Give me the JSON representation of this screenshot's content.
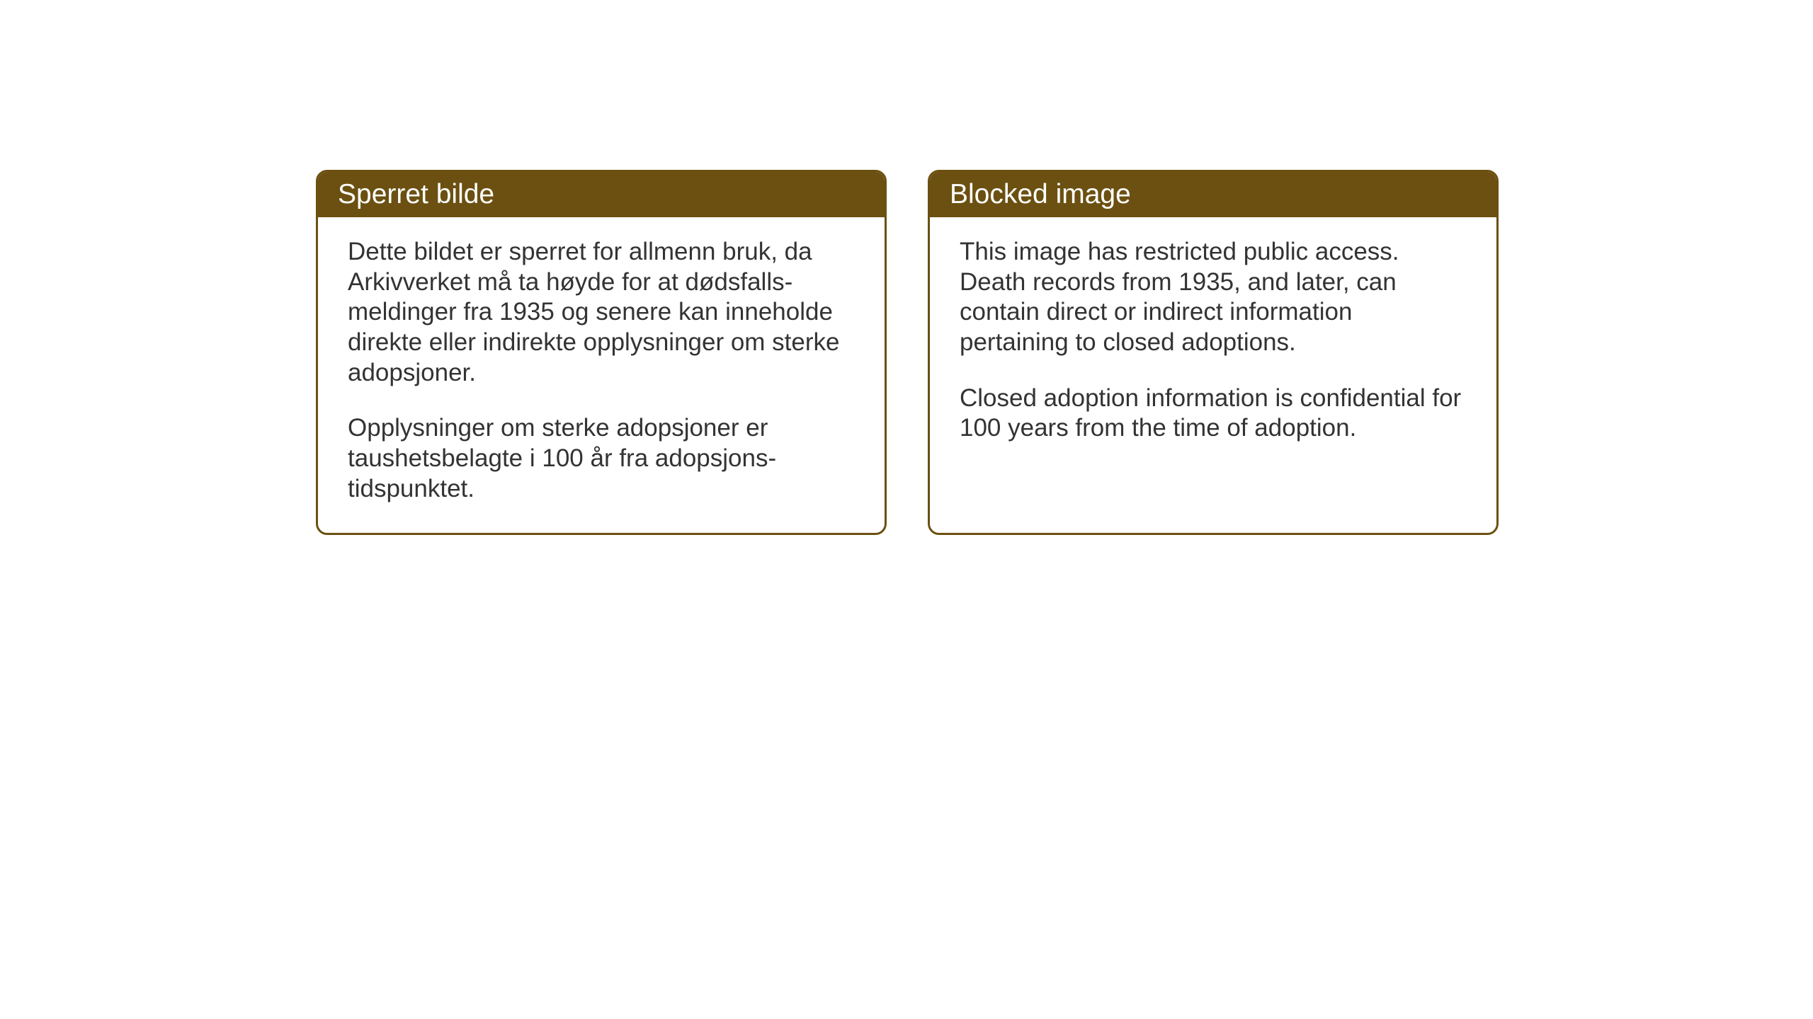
{
  "layout": {
    "background_color": "#ffffff",
    "card_border_color": "#6b5011",
    "card_header_bg": "#6b5011",
    "card_header_text_color": "#ffffff",
    "card_body_text_color": "#333333",
    "card_border_radius": "16px",
    "header_fontsize": 39,
    "body_fontsize": 35
  },
  "cards": {
    "norwegian": {
      "title": "Sperret bilde",
      "paragraph1": "Dette bildet er sperret for allmenn bruk, da Arkivverket må ta høyde for at dødsfalls-meldinger fra 1935 og senere kan inneholde direkte eller indirekte opplysninger om sterke adopsjoner.",
      "paragraph2": "Opplysninger om sterke adopsjoner er taushetsbelagte i 100 år fra adopsjons-tidspunktet."
    },
    "english": {
      "title": "Blocked image",
      "paragraph1": "This image has restricted public access. Death records from 1935, and later, can contain direct or indirect information pertaining to closed adoptions.",
      "paragraph2": "Closed adoption information is confidential for 100 years from the time of adoption."
    }
  }
}
